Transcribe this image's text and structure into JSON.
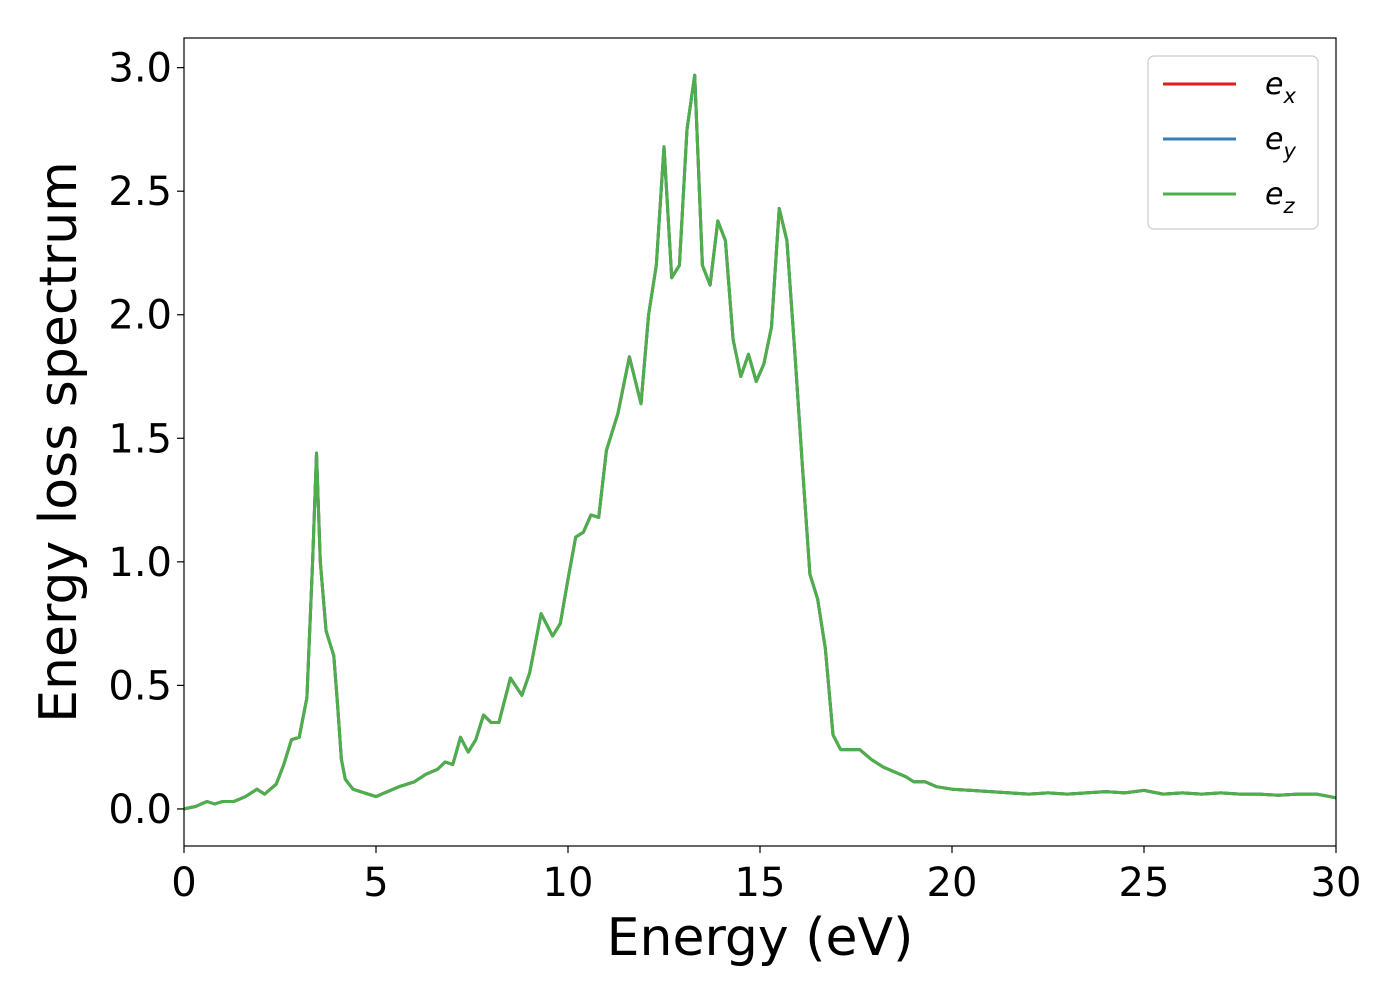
{
  "chart_data": {
    "type": "line",
    "title": "",
    "xlabel": "Energy (eV)",
    "ylabel": "Energy loss spectrum",
    "xlim": [
      0,
      30
    ],
    "ylim": [
      -0.15,
      3.12
    ],
    "xticks": [
      0,
      5,
      10,
      15,
      20,
      25,
      30
    ],
    "xtick_labels": [
      "0",
      "5",
      "10",
      "15",
      "20",
      "25",
      "30"
    ],
    "yticks": [
      0.0,
      0.5,
      1.0,
      1.5,
      2.0,
      2.5,
      3.0
    ],
    "ytick_labels": [
      "0.0",
      "0.5",
      "1.0",
      "1.5",
      "2.0",
      "2.5",
      "3.0"
    ],
    "grid": false,
    "legend_position": "top-right",
    "series": [
      {
        "key": "ex",
        "legend_base": "e",
        "legend_sub": "x",
        "color": "#e41a1c"
      },
      {
        "key": "ey",
        "legend_base": "e",
        "legend_sub": "y",
        "color": "#377eb8"
      },
      {
        "key": "ez",
        "legend_base": "e",
        "legend_sub": "z",
        "color": "#4daf4a"
      }
    ],
    "x": [
      0,
      0.3,
      0.6,
      0.8,
      1.0,
      1.3,
      1.6,
      1.9,
      2.1,
      2.4,
      2.6,
      2.8,
      3.0,
      3.2,
      3.35,
      3.45,
      3.55,
      3.7,
      3.9,
      4.0,
      4.1,
      4.2,
      4.4,
      4.7,
      5.0,
      5.3,
      5.6,
      6.0,
      6.3,
      6.6,
      6.8,
      7.0,
      7.2,
      7.4,
      7.6,
      7.8,
      8.0,
      8.2,
      8.5,
      8.8,
      9.0,
      9.3,
      9.6,
      9.8,
      10.0,
      10.2,
      10.4,
      10.6,
      10.8,
      11.0,
      11.3,
      11.6,
      11.9,
      12.1,
      12.3,
      12.5,
      12.7,
      12.9,
      13.1,
      13.3,
      13.5,
      13.7,
      13.9,
      14.1,
      14.3,
      14.5,
      14.7,
      14.9,
      15.1,
      15.3,
      15.5,
      15.7,
      15.9,
      16.1,
      16.3,
      16.5,
      16.7,
      16.9,
      17.1,
      17.3,
      17.6,
      17.9,
      18.2,
      18.5,
      18.8,
      19.0,
      19.3,
      19.6,
      20.0,
      20.5,
      21.0,
      21.5,
      22.0,
      22.5,
      23.0,
      23.5,
      24.0,
      24.5,
      25.0,
      25.5,
      26.0,
      26.5,
      27.0,
      27.5,
      28.0,
      28.5,
      29.0,
      29.5,
      30.0
    ],
    "values": [
      0.0,
      0.01,
      0.03,
      0.02,
      0.03,
      0.03,
      0.05,
      0.08,
      0.06,
      0.1,
      0.18,
      0.28,
      0.29,
      0.45,
      1.0,
      1.44,
      1.0,
      0.72,
      0.62,
      0.42,
      0.2,
      0.12,
      0.08,
      0.065,
      0.05,
      0.07,
      0.09,
      0.11,
      0.14,
      0.16,
      0.19,
      0.18,
      0.29,
      0.23,
      0.28,
      0.38,
      0.35,
      0.35,
      0.53,
      0.46,
      0.55,
      0.79,
      0.7,
      0.75,
      0.93,
      1.1,
      1.12,
      1.19,
      1.18,
      1.45,
      1.6,
      1.83,
      1.64,
      2.0,
      2.2,
      2.68,
      2.15,
      2.2,
      2.75,
      2.97,
      2.2,
      2.12,
      2.38,
      2.3,
      1.9,
      1.75,
      1.84,
      1.73,
      1.8,
      1.95,
      2.43,
      2.3,
      1.86,
      1.4,
      0.95,
      0.85,
      0.65,
      0.3,
      0.24,
      0.24,
      0.24,
      0.2,
      0.17,
      0.15,
      0.13,
      0.11,
      0.11,
      0.09,
      0.08,
      0.075,
      0.07,
      0.065,
      0.06,
      0.065,
      0.06,
      0.065,
      0.07,
      0.065,
      0.075,
      0.06,
      0.065,
      0.06,
      0.065,
      0.06,
      0.06,
      0.055,
      0.06,
      0.06,
      0.045
    ]
  }
}
